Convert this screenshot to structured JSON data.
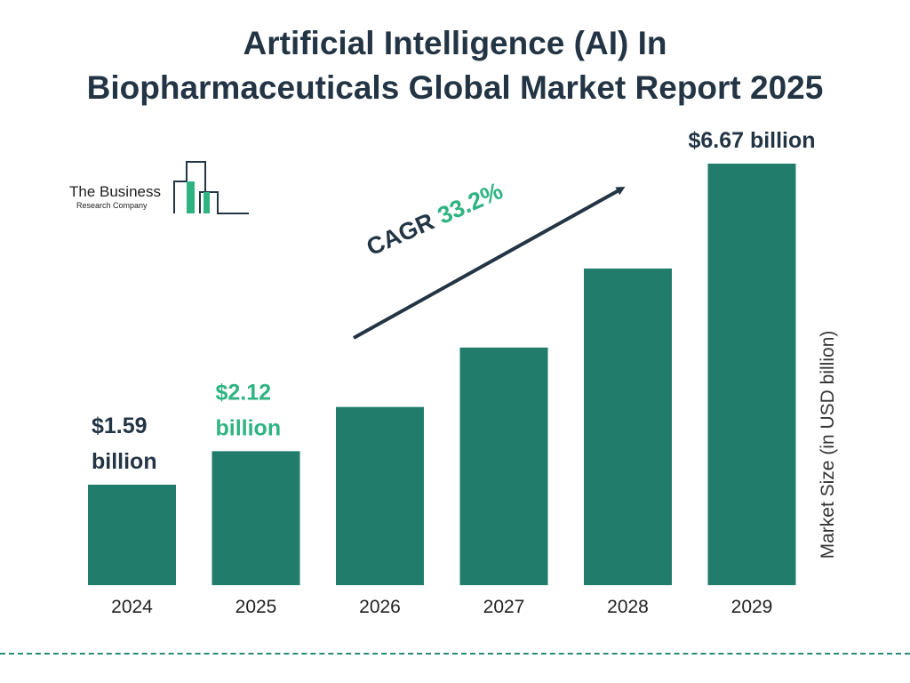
{
  "title_lines": [
    "Artificial Intelligence (AI) In",
    "Biopharmaceuticals Global Market Report 2025"
  ],
  "logo": {
    "line1": "The Business",
    "line2": "Research Company",
    "icon": "building-bars-icon"
  },
  "cagr": {
    "label": "CAGR",
    "value": "33.2%"
  },
  "colors": {
    "bar": "#217c6c",
    "title": "#233545",
    "highlight": "#2eb381",
    "label_dark": "#233545"
  },
  "chart_data": {
    "type": "bar",
    "categories": [
      "2024",
      "2025",
      "2026",
      "2027",
      "2028",
      "2029"
    ],
    "values": [
      1.59,
      2.12,
      2.82,
      3.76,
      5.01,
      6.67
    ],
    "data_labels": [
      {
        "index": 0,
        "lines": [
          "$1.59",
          "billion"
        ],
        "color": "#233545"
      },
      {
        "index": 1,
        "lines": [
          "$2.12",
          "billion"
        ],
        "color": "#2eb381"
      },
      {
        "index": 5,
        "lines": [
          "$6.67 billion"
        ],
        "color": "#233545"
      }
    ],
    "ylabel": "Market Size (in USD billion)",
    "xlabel": "",
    "ylim": [
      0,
      6.67
    ],
    "grid": false,
    "legend": "none"
  }
}
